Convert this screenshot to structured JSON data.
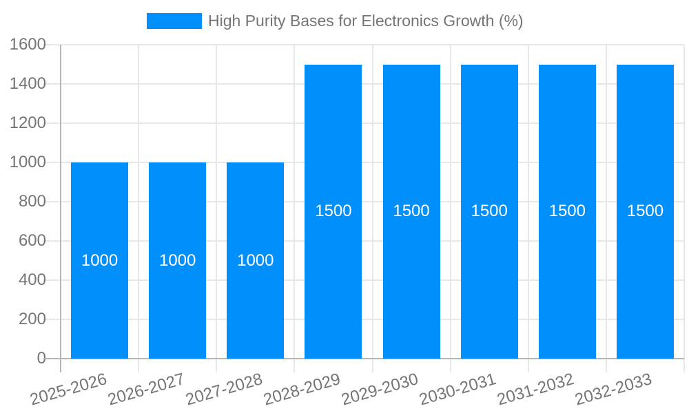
{
  "chart_data": {
    "type": "bar",
    "title": "High Purity Bases for Electronics Growth (%)",
    "categories": [
      "2025-2026",
      "2026-2027",
      "2027-2028",
      "2028-2029",
      "2029-2030",
      "2030-2031",
      "2031-2032",
      "2032-2033"
    ],
    "values": [
      1000,
      1000,
      1000,
      1500,
      1500,
      1500,
      1500,
      1500
    ],
    "bar_labels": [
      "1000",
      "1000",
      "1000",
      "1500",
      "1500",
      "1500",
      "1500",
      "1500"
    ],
    "xlabel": "",
    "ylabel": "",
    "ylim": [
      0,
      1600
    ],
    "yticks": [
      0,
      200,
      400,
      600,
      800,
      1000,
      1200,
      1400,
      1600
    ],
    "grid": true,
    "legend_position": "top",
    "colors": {
      "bar": "#008FFB",
      "bar_label": "#FFFFFF",
      "grid_line": "#E7E7E7",
      "axis_line": "#B5B5B5",
      "tick_label": "#757575",
      "legend_text": "#757575",
      "background": "#FFFFFF"
    }
  }
}
